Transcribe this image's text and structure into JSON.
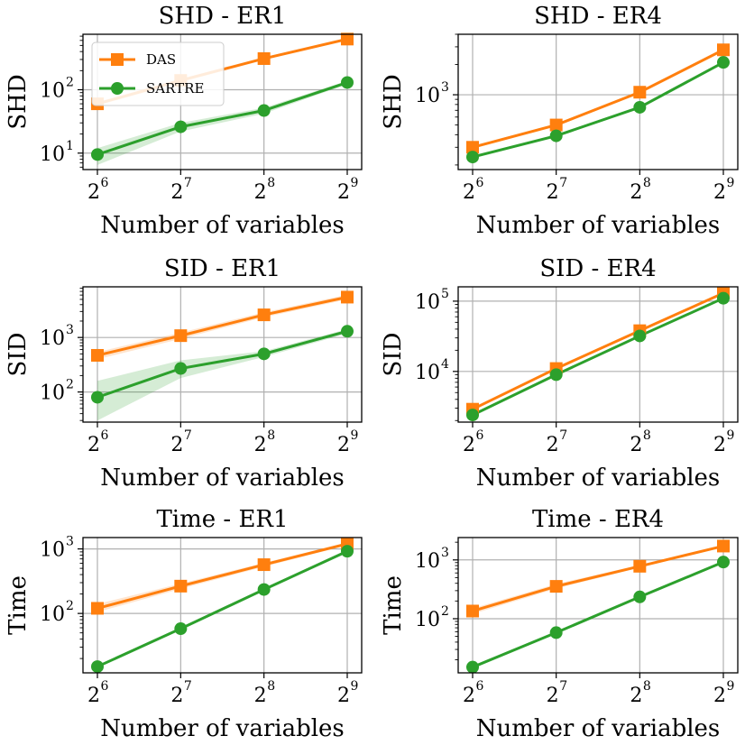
{
  "colors": {
    "DAS": "#ff7f0e",
    "SARTRE": "#2ca02c",
    "grid": "#b0b0b0"
  },
  "chart_data": [
    {
      "type": "line",
      "title": "SHD - ER1",
      "xlabel": "Number of variables",
      "ylabel": "SHD",
      "x": [
        6,
        7,
        8,
        9
      ],
      "xtick_base": "2",
      "xtick_exps": [
        "6",
        "7",
        "8",
        "9"
      ],
      "yscale": "log",
      "ylim": [
        5.5,
        750
      ],
      "yticks": [
        {
          "exp": 1,
          "base": "10",
          "sup": "1"
        },
        {
          "exp": 2,
          "base": "10",
          "sup": "2"
        }
      ],
      "series": [
        {
          "name": "DAS",
          "values": [
            60,
            140,
            310,
            630
          ],
          "lower": [
            56,
            130,
            295,
            610
          ],
          "upper": [
            64,
            150,
            325,
            650
          ]
        },
        {
          "name": "SARTRE",
          "values": [
            9.5,
            26,
            47,
            130
          ],
          "lower": [
            6.5,
            22,
            42,
            122
          ],
          "upper": [
            12,
            30,
            52,
            138
          ]
        }
      ],
      "legend": {
        "position": "upper-left",
        "entries": [
          "DAS",
          "SARTRE"
        ]
      }
    },
    {
      "type": "line",
      "title": "SHD - ER4",
      "xlabel": "Number of variables",
      "ylabel": "SHD",
      "x": [
        6,
        7,
        8,
        9
      ],
      "xtick_base": "2",
      "xtick_exps": [
        "6",
        "7",
        "8",
        "9"
      ],
      "yscale": "log",
      "ylim": [
        180,
        4000
      ],
      "yticks": [
        {
          "exp": 3,
          "base": "10",
          "sup": "3"
        }
      ],
      "series": [
        {
          "name": "DAS",
          "values": [
            300,
            500,
            1060,
            2800
          ],
          "lower": [
            290,
            485,
            1030,
            2740
          ],
          "upper": [
            310,
            515,
            1090,
            2860
          ]
        },
        {
          "name": "SARTRE",
          "values": [
            240,
            390,
            750,
            2100
          ],
          "lower": [
            232,
            378,
            730,
            2050
          ],
          "upper": [
            248,
            402,
            770,
            2150
          ]
        }
      ]
    },
    {
      "type": "line",
      "title": "SID - ER1",
      "xlabel": "Number of variables",
      "ylabel": "SID",
      "x": [
        6,
        7,
        8,
        9
      ],
      "xtick_base": "2",
      "xtick_exps": [
        "6",
        "7",
        "8",
        "9"
      ],
      "yscale": "log",
      "ylim": [
        28,
        8500
      ],
      "yticks": [
        {
          "exp": 2,
          "base": "10",
          "sup": "2"
        },
        {
          "exp": 3,
          "base": "10",
          "sup": "3"
        }
      ],
      "series": [
        {
          "name": "DAS",
          "values": [
            470,
            1080,
            2600,
            5500
          ],
          "lower": [
            400,
            940,
            2350,
            5000
          ],
          "upper": [
            540,
            1230,
            2900,
            6100
          ]
        },
        {
          "name": "SARTRE",
          "values": [
            80,
            270,
            500,
            1300
          ],
          "lower": [
            30,
            180,
            440,
            1180
          ],
          "upper": [
            160,
            380,
            560,
            1420
          ]
        }
      ]
    },
    {
      "type": "line",
      "title": "SID - ER4",
      "xlabel": "Number of variables",
      "ylabel": "SID",
      "x": [
        6,
        7,
        8,
        9
      ],
      "xtick_base": "2",
      "xtick_exps": [
        "6",
        "7",
        "8",
        "9"
      ],
      "yscale": "log",
      "ylim": [
        1900,
        160000
      ],
      "yticks": [
        {
          "exp": 4,
          "base": "10",
          "sup": "4"
        },
        {
          "exp": 5,
          "base": "10",
          "sup": "5"
        }
      ],
      "series": [
        {
          "name": "DAS",
          "values": [
            2900,
            11000,
            38000,
            130000
          ],
          "lower": [
            2750,
            10500,
            36500,
            126000
          ],
          "upper": [
            3050,
            11500,
            39500,
            134000
          ]
        },
        {
          "name": "SARTRE",
          "values": [
            2400,
            9000,
            32000,
            110000
          ],
          "lower": [
            2300,
            8700,
            31000,
            107000
          ],
          "upper": [
            2500,
            9300,
            33000,
            113000
          ]
        }
      ]
    },
    {
      "type": "line",
      "title": "Time - ER1",
      "xlabel": "Number of variables",
      "ylabel": "Time",
      "x": [
        6,
        7,
        8,
        9
      ],
      "xtick_base": "2",
      "xtick_exps": [
        "6",
        "7",
        "8",
        "9"
      ],
      "yscale": "log",
      "ylim": [
        12,
        1500
      ],
      "yticks": [
        {
          "exp": 2,
          "base": "10",
          "sup": "2"
        },
        {
          "exp": 3,
          "base": "10",
          "sup": "3"
        }
      ],
      "series": [
        {
          "name": "DAS",
          "values": [
            120,
            265,
            570,
            1200
          ],
          "lower": [
            105,
            240,
            530,
            1140
          ],
          "upper": [
            140,
            290,
            610,
            1260
          ]
        },
        {
          "name": "SARTRE",
          "values": [
            15,
            58,
            235,
            920
          ],
          "lower": [
            14.5,
            56,
            228,
            900
          ],
          "upper": [
            15.5,
            60,
            242,
            940
          ]
        }
      ]
    },
    {
      "type": "line",
      "title": "Time - ER4",
      "xlabel": "Number of variables",
      "ylabel": "Time",
      "x": [
        6,
        7,
        8,
        9
      ],
      "xtick_base": "2",
      "xtick_exps": [
        "6",
        "7",
        "8",
        "9"
      ],
      "yscale": "log",
      "ylim": [
        12,
        2400
      ],
      "yticks": [
        {
          "exp": 2,
          "base": "10",
          "sup": "2"
        },
        {
          "exp": 3,
          "base": "10",
          "sup": "3"
        }
      ],
      "series": [
        {
          "name": "DAS",
          "values": [
            135,
            355,
            780,
            1720
          ],
          "lower": [
            120,
            325,
            740,
            1650
          ],
          "upper": [
            150,
            390,
            820,
            1790
          ]
        },
        {
          "name": "SARTRE",
          "values": [
            15,
            58,
            235,
            920
          ],
          "lower": [
            14.5,
            56,
            228,
            900
          ],
          "upper": [
            15.5,
            60,
            242,
            940
          ]
        }
      ]
    }
  ]
}
